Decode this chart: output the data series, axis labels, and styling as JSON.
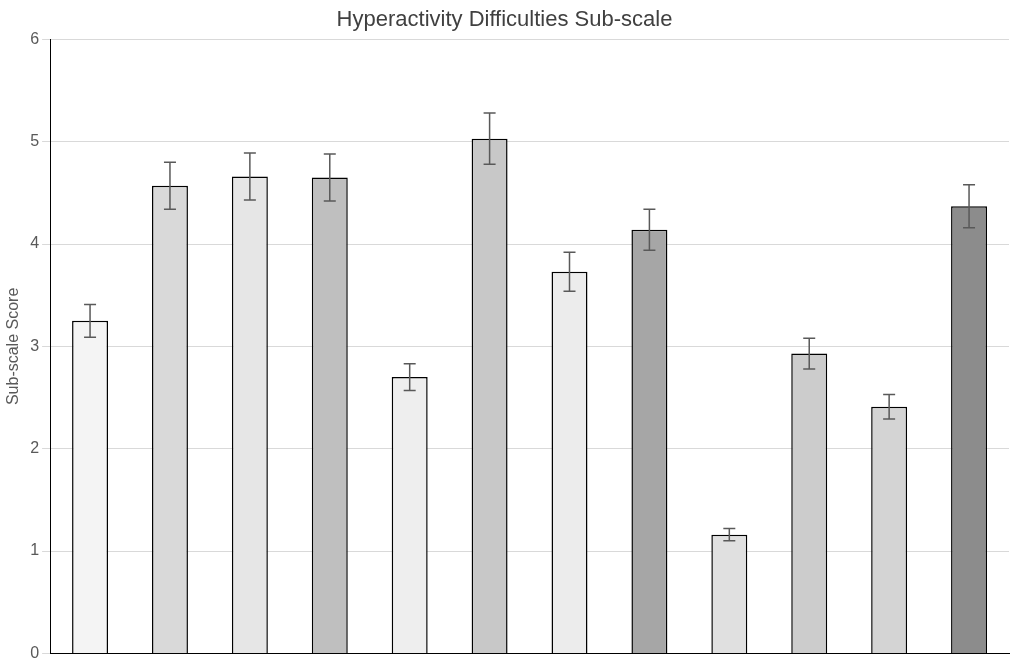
{
  "chart_data": {
    "type": "bar",
    "title": "Hyperactivity Difficulties Sub-scale",
    "ylabel": "Sub-scale Score",
    "categories": [
      null,
      null,
      null,
      null,
      null,
      null,
      null,
      null,
      null,
      null,
      null,
      null
    ],
    "values": [
      3.25,
      4.57,
      4.66,
      4.65,
      2.7,
      5.03,
      3.73,
      4.14,
      1.16,
      2.93,
      2.41,
      4.37
    ],
    "errors": [
      0.16,
      0.23,
      0.23,
      0.23,
      0.13,
      0.25,
      0.19,
      0.2,
      0.06,
      0.15,
      0.12,
      0.21
    ],
    "colors": [
      "#f4f4f4",
      "#d9d9d9",
      "#e6e6e6",
      "#bfbfbf",
      "#eeeeee",
      "#c8c8c8",
      "#ececec",
      "#a6a6a6",
      "#e0e0e0",
      "#cccccc",
      "#d4d4d4",
      "#8c8c8c"
    ],
    "ylim": [
      0,
      6
    ],
    "yticks": [
      0,
      1,
      2,
      3,
      4,
      5,
      6
    ],
    "grid": "y",
    "tick_labels": "y",
    "legend": false
  }
}
